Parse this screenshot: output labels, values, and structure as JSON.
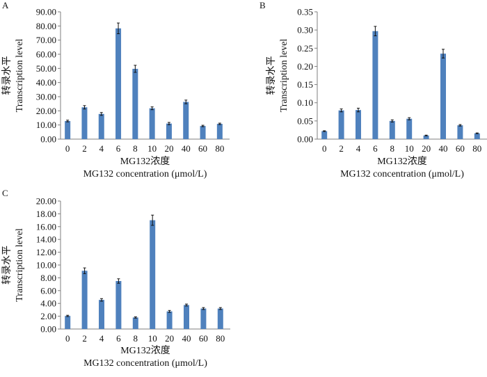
{
  "colors": {
    "bar": "#4f81bd",
    "axis": "#7f7f7f",
    "error_bar": "#111111"
  },
  "chart_data": [
    {
      "panel": "A",
      "type": "bar",
      "categories": [
        "0",
        "2",
        "4",
        "6",
        "8",
        "10",
        "20",
        "40",
        "60",
        "80"
      ],
      "values": [
        12.8,
        22.5,
        17.8,
        78.3,
        49.7,
        21.8,
        11.0,
        26.3,
        9.3,
        10.8
      ],
      "errors": [
        0.6,
        1.2,
        1.0,
        3.8,
        2.5,
        1.0,
        0.8,
        1.3,
        0.5,
        0.5
      ],
      "yticks": [
        "0.00",
        "10.00",
        "20.00",
        "30.00",
        "40.00",
        "50.00",
        "60.00",
        "70.00",
        "80.00",
        "90.00"
      ],
      "ylim": [
        0,
        90
      ],
      "ylabel_cn": "转录水平",
      "ylabel_en": "Transcription level",
      "xlabel_cn": "MG132浓度",
      "xlabel_en": "MG132 concentration (μmol/L)",
      "grid": false
    },
    {
      "panel": "B",
      "type": "bar",
      "categories": [
        "0",
        "2",
        "4",
        "6",
        "8",
        "10",
        "20",
        "40",
        "60",
        "80"
      ],
      "values": [
        0.022,
        0.079,
        0.08,
        0.297,
        0.05,
        0.056,
        0.01,
        0.235,
        0.038,
        0.016
      ],
      "errors": [
        0.001,
        0.004,
        0.005,
        0.013,
        0.003,
        0.003,
        0.001,
        0.012,
        0.002,
        0.001
      ],
      "yticks": [
        "0.00",
        "0.05",
        "0.10",
        "0.15",
        "0.20",
        "0.25",
        "0.30",
        "0.35"
      ],
      "ylim": [
        0,
        0.35
      ],
      "ylabel_cn": "转录水平",
      "ylabel_en": "Transcription level",
      "xlabel_cn": "MG132浓度",
      "xlabel_en": "MG132 concentration (μmol/L)",
      "grid": false
    },
    {
      "panel": "C",
      "type": "bar",
      "categories": [
        "0",
        "2",
        "4",
        "6",
        "8",
        "10",
        "20",
        "40",
        "60",
        "80"
      ],
      "values": [
        2.05,
        9.1,
        4.55,
        7.5,
        1.8,
        17.0,
        2.75,
        3.75,
        3.2,
        3.2
      ],
      "errors": [
        0.1,
        0.45,
        0.2,
        0.35,
        0.1,
        0.8,
        0.15,
        0.15,
        0.15,
        0.15
      ],
      "yticks": [
        "0.00",
        "2.00",
        "4.00",
        "6.00",
        "8.00",
        "10.00",
        "12.00",
        "14.00",
        "16.00",
        "18.00",
        "20.00"
      ],
      "ylim": [
        0,
        20
      ],
      "ylabel_cn": "转录水平",
      "ylabel_en": "Transcription level",
      "xlabel_cn": "MG132浓度",
      "xlabel_en": "MG132 concentration (μmol/L)",
      "grid": false
    }
  ]
}
